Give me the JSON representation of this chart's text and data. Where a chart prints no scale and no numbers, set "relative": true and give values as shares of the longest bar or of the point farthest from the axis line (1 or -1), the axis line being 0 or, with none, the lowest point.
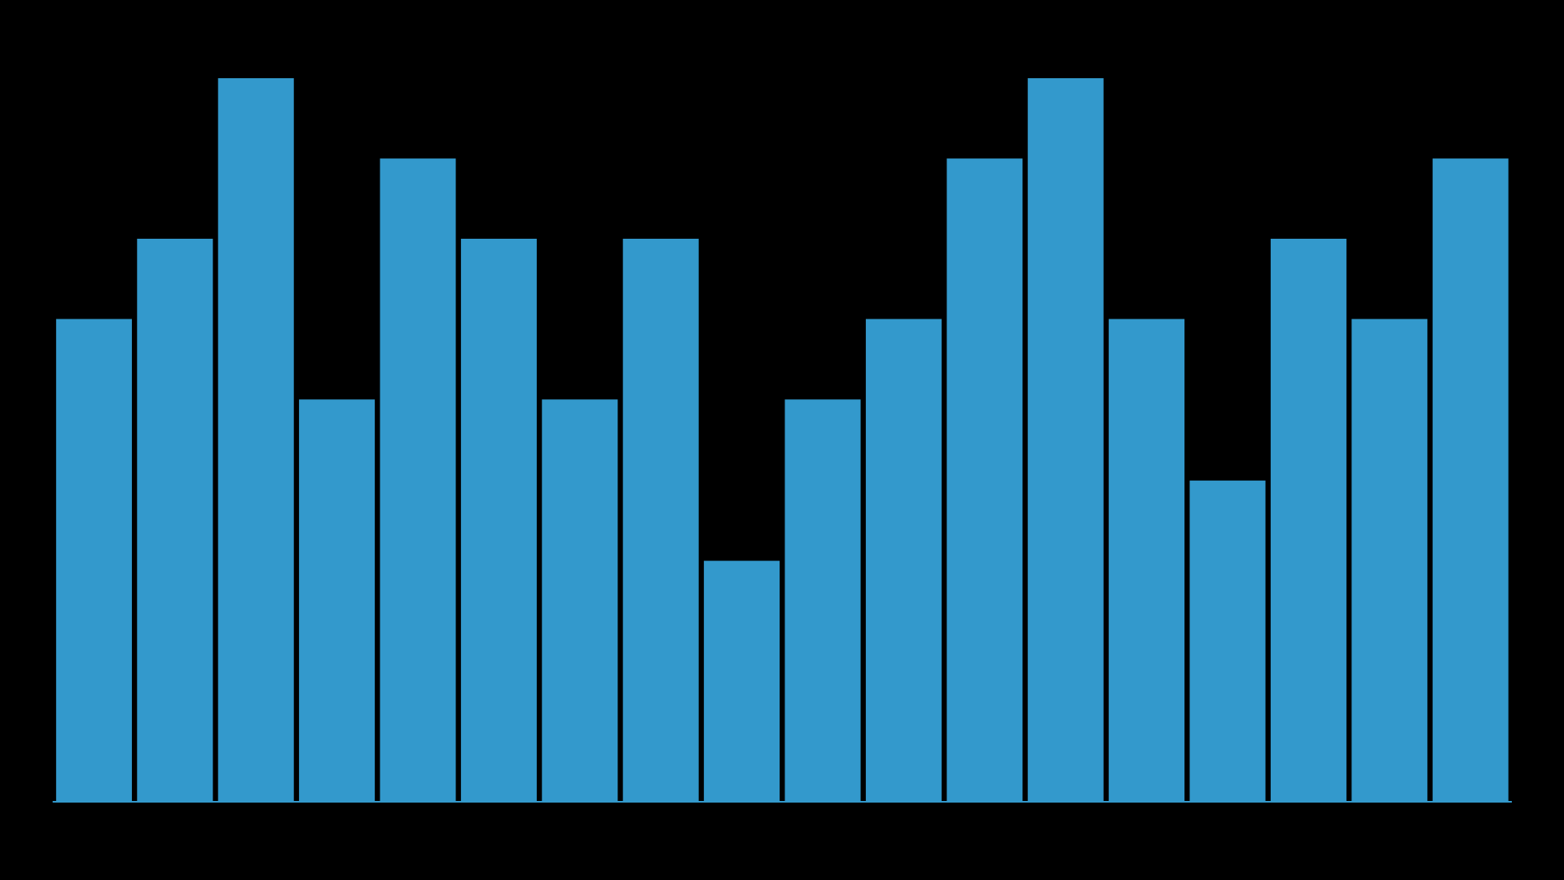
{
  "chart_data": {
    "type": "bar",
    "relative": true,
    "categories": [
      null,
      null,
      null,
      null,
      null,
      null,
      null,
      null,
      null,
      null,
      null,
      null,
      null,
      null,
      null,
      null,
      null,
      null
    ],
    "color": "#3399cc",
    "values": [
      0.667,
      0.778,
      1,
      0.556,
      0.889,
      0.778,
      0.556,
      0.778,
      0.333,
      0.556,
      0.667,
      0.889,
      1,
      0.667,
      0.444,
      0.778,
      0.667,
      0.889
    ]
  }
}
